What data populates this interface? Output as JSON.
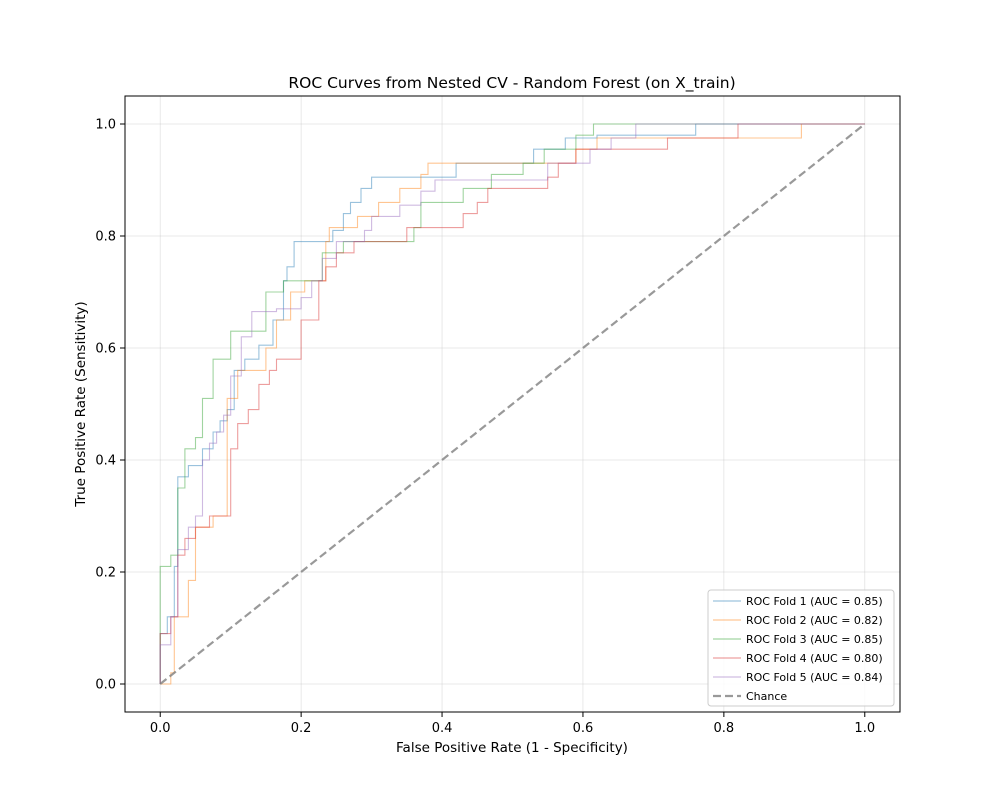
{
  "chart_data": {
    "type": "line",
    "title": "ROC Curves from Nested CV - Random Forest (on X_train)",
    "xlabel": "False Positive Rate (1 - Specificity)",
    "ylabel": "True Positive Rate (Sensitivity)",
    "xlim": [
      -0.05,
      1.05
    ],
    "ylim": [
      -0.05,
      1.05
    ],
    "xticks": [
      0.0,
      0.2,
      0.4,
      0.6,
      0.8,
      1.0
    ],
    "yticks": [
      0.0,
      0.2,
      0.4,
      0.6,
      0.8,
      1.0
    ],
    "xtick_labels": [
      "0.0",
      "0.2",
      "0.4",
      "0.6",
      "0.8",
      "1.0"
    ],
    "ytick_labels": [
      "0.0",
      "0.2",
      "0.4",
      "0.6",
      "0.8",
      "1.0"
    ],
    "grid": true,
    "legend_position": "lower-right",
    "series": [
      {
        "name": "ROC Fold 1 (AUC = 0.85)",
        "color": "#1f77b4",
        "step": true,
        "points": [
          [
            0,
            0
          ],
          [
            0,
            0.09
          ],
          [
            0.01,
            0.09
          ],
          [
            0.01,
            0.12
          ],
          [
            0.02,
            0.12
          ],
          [
            0.02,
            0.21
          ],
          [
            0.025,
            0.21
          ],
          [
            0.025,
            0.37
          ],
          [
            0.04,
            0.37
          ],
          [
            0.04,
            0.39
          ],
          [
            0.06,
            0.39
          ],
          [
            0.06,
            0.42
          ],
          [
            0.075,
            0.42
          ],
          [
            0.075,
            0.45
          ],
          [
            0.085,
            0.45
          ],
          [
            0.085,
            0.47
          ],
          [
            0.095,
            0.47
          ],
          [
            0.095,
            0.49
          ],
          [
            0.105,
            0.49
          ],
          [
            0.105,
            0.56
          ],
          [
            0.12,
            0.56
          ],
          [
            0.12,
            0.58
          ],
          [
            0.14,
            0.58
          ],
          [
            0.14,
            0.605
          ],
          [
            0.16,
            0.605
          ],
          [
            0.16,
            0.65
          ],
          [
            0.175,
            0.65
          ],
          [
            0.175,
            0.72
          ],
          [
            0.18,
            0.72
          ],
          [
            0.18,
            0.745
          ],
          [
            0.19,
            0.745
          ],
          [
            0.19,
            0.79
          ],
          [
            0.245,
            0.79
          ],
          [
            0.245,
            0.81
          ],
          [
            0.26,
            0.81
          ],
          [
            0.26,
            0.84
          ],
          [
            0.27,
            0.84
          ],
          [
            0.27,
            0.86
          ],
          [
            0.285,
            0.86
          ],
          [
            0.285,
            0.885
          ],
          [
            0.3,
            0.885
          ],
          [
            0.3,
            0.905
          ],
          [
            0.42,
            0.905
          ],
          [
            0.42,
            0.93
          ],
          [
            0.53,
            0.93
          ],
          [
            0.53,
            0.955
          ],
          [
            0.575,
            0.955
          ],
          [
            0.575,
            0.975
          ],
          [
            0.62,
            0.975
          ],
          [
            0.62,
            0.98
          ],
          [
            0.76,
            0.98
          ],
          [
            0.76,
            1.0
          ],
          [
            1.0,
            1.0
          ]
        ]
      },
      {
        "name": "ROC Fold 2 (AUC = 0.82)",
        "color": "#ff7f0e",
        "step": true,
        "points": [
          [
            0,
            0
          ],
          [
            0.015,
            0
          ],
          [
            0.015,
            0.02
          ],
          [
            0.02,
            0.02
          ],
          [
            0.02,
            0.12
          ],
          [
            0.04,
            0.12
          ],
          [
            0.04,
            0.185
          ],
          [
            0.05,
            0.185
          ],
          [
            0.05,
            0.28
          ],
          [
            0.075,
            0.28
          ],
          [
            0.075,
            0.3
          ],
          [
            0.095,
            0.3
          ],
          [
            0.095,
            0.51
          ],
          [
            0.11,
            0.51
          ],
          [
            0.11,
            0.56
          ],
          [
            0.15,
            0.56
          ],
          [
            0.15,
            0.6
          ],
          [
            0.165,
            0.6
          ],
          [
            0.165,
            0.65
          ],
          [
            0.185,
            0.65
          ],
          [
            0.185,
            0.7
          ],
          [
            0.205,
            0.7
          ],
          [
            0.205,
            0.72
          ],
          [
            0.235,
            0.72
          ],
          [
            0.235,
            0.79
          ],
          [
            0.24,
            0.79
          ],
          [
            0.24,
            0.815
          ],
          [
            0.28,
            0.815
          ],
          [
            0.28,
            0.835
          ],
          [
            0.31,
            0.835
          ],
          [
            0.31,
            0.86
          ],
          [
            0.34,
            0.86
          ],
          [
            0.34,
            0.885
          ],
          [
            0.37,
            0.885
          ],
          [
            0.37,
            0.91
          ],
          [
            0.38,
            0.91
          ],
          [
            0.38,
            0.93
          ],
          [
            0.59,
            0.93
          ],
          [
            0.59,
            0.955
          ],
          [
            0.62,
            0.955
          ],
          [
            0.62,
            0.975
          ],
          [
            0.91,
            0.975
          ],
          [
            0.91,
            1.0
          ],
          [
            1.0,
            1.0
          ]
        ]
      },
      {
        "name": "ROC Fold 3 (AUC = 0.85)",
        "color": "#2ca02c",
        "step": true,
        "points": [
          [
            0,
            0
          ],
          [
            0,
            0.21
          ],
          [
            0.015,
            0.21
          ],
          [
            0.015,
            0.23
          ],
          [
            0.025,
            0.23
          ],
          [
            0.025,
            0.35
          ],
          [
            0.035,
            0.35
          ],
          [
            0.035,
            0.42
          ],
          [
            0.05,
            0.42
          ],
          [
            0.05,
            0.44
          ],
          [
            0.06,
            0.44
          ],
          [
            0.06,
            0.51
          ],
          [
            0.075,
            0.51
          ],
          [
            0.075,
            0.58
          ],
          [
            0.1,
            0.58
          ],
          [
            0.1,
            0.63
          ],
          [
            0.15,
            0.63
          ],
          [
            0.15,
            0.7
          ],
          [
            0.175,
            0.7
          ],
          [
            0.175,
            0.72
          ],
          [
            0.23,
            0.72
          ],
          [
            0.23,
            0.77
          ],
          [
            0.26,
            0.77
          ],
          [
            0.26,
            0.79
          ],
          [
            0.36,
            0.79
          ],
          [
            0.36,
            0.815
          ],
          [
            0.37,
            0.815
          ],
          [
            0.37,
            0.86
          ],
          [
            0.43,
            0.86
          ],
          [
            0.43,
            0.885
          ],
          [
            0.47,
            0.885
          ],
          [
            0.47,
            0.91
          ],
          [
            0.515,
            0.91
          ],
          [
            0.515,
            0.93
          ],
          [
            0.545,
            0.93
          ],
          [
            0.545,
            0.955
          ],
          [
            0.59,
            0.955
          ],
          [
            0.59,
            0.98
          ],
          [
            0.615,
            0.98
          ],
          [
            0.615,
            1.0
          ],
          [
            1.0,
            1.0
          ]
        ]
      },
      {
        "name": "ROC Fold 4 (AUC = 0.80)",
        "color": "#d62728",
        "step": true,
        "points": [
          [
            0,
            0
          ],
          [
            0,
            0.09
          ],
          [
            0.015,
            0.09
          ],
          [
            0.015,
            0.12
          ],
          [
            0.025,
            0.12
          ],
          [
            0.025,
            0.23
          ],
          [
            0.035,
            0.23
          ],
          [
            0.035,
            0.26
          ],
          [
            0.05,
            0.26
          ],
          [
            0.05,
            0.28
          ],
          [
            0.07,
            0.28
          ],
          [
            0.07,
            0.3
          ],
          [
            0.1,
            0.3
          ],
          [
            0.1,
            0.42
          ],
          [
            0.11,
            0.42
          ],
          [
            0.11,
            0.465
          ],
          [
            0.125,
            0.465
          ],
          [
            0.125,
            0.49
          ],
          [
            0.14,
            0.49
          ],
          [
            0.14,
            0.535
          ],
          [
            0.155,
            0.535
          ],
          [
            0.155,
            0.56
          ],
          [
            0.165,
            0.56
          ],
          [
            0.165,
            0.58
          ],
          [
            0.2,
            0.58
          ],
          [
            0.2,
            0.65
          ],
          [
            0.225,
            0.65
          ],
          [
            0.225,
            0.72
          ],
          [
            0.235,
            0.72
          ],
          [
            0.235,
            0.745
          ],
          [
            0.25,
            0.745
          ],
          [
            0.25,
            0.77
          ],
          [
            0.275,
            0.77
          ],
          [
            0.275,
            0.79
          ],
          [
            0.35,
            0.79
          ],
          [
            0.35,
            0.815
          ],
          [
            0.43,
            0.815
          ],
          [
            0.43,
            0.84
          ],
          [
            0.45,
            0.84
          ],
          [
            0.45,
            0.86
          ],
          [
            0.465,
            0.86
          ],
          [
            0.465,
            0.885
          ],
          [
            0.55,
            0.885
          ],
          [
            0.55,
            0.905
          ],
          [
            0.565,
            0.905
          ],
          [
            0.565,
            0.93
          ],
          [
            0.59,
            0.93
          ],
          [
            0.59,
            0.955
          ],
          [
            0.72,
            0.955
          ],
          [
            0.72,
            0.975
          ],
          [
            0.82,
            0.975
          ],
          [
            0.82,
            1.0
          ],
          [
            1.0,
            1.0
          ]
        ]
      },
      {
        "name": "ROC Fold 5 (AUC = 0.84)",
        "color": "#9467bd",
        "step": true,
        "points": [
          [
            0,
            0
          ],
          [
            0,
            0.07
          ],
          [
            0.015,
            0.07
          ],
          [
            0.015,
            0.12
          ],
          [
            0.025,
            0.12
          ],
          [
            0.025,
            0.24
          ],
          [
            0.04,
            0.24
          ],
          [
            0.04,
            0.28
          ],
          [
            0.05,
            0.28
          ],
          [
            0.05,
            0.3
          ],
          [
            0.06,
            0.3
          ],
          [
            0.06,
            0.4
          ],
          [
            0.07,
            0.4
          ],
          [
            0.07,
            0.43
          ],
          [
            0.08,
            0.43
          ],
          [
            0.08,
            0.45
          ],
          [
            0.09,
            0.45
          ],
          [
            0.09,
            0.48
          ],
          [
            0.1,
            0.48
          ],
          [
            0.1,
            0.55
          ],
          [
            0.115,
            0.55
          ],
          [
            0.115,
            0.62
          ],
          [
            0.13,
            0.62
          ],
          [
            0.13,
            0.665
          ],
          [
            0.165,
            0.665
          ],
          [
            0.165,
            0.67
          ],
          [
            0.2,
            0.67
          ],
          [
            0.2,
            0.69
          ],
          [
            0.215,
            0.69
          ],
          [
            0.215,
            0.72
          ],
          [
            0.23,
            0.72
          ],
          [
            0.23,
            0.76
          ],
          [
            0.25,
            0.76
          ],
          [
            0.25,
            0.79
          ],
          [
            0.29,
            0.79
          ],
          [
            0.29,
            0.81
          ],
          [
            0.3,
            0.81
          ],
          [
            0.3,
            0.835
          ],
          [
            0.34,
            0.835
          ],
          [
            0.34,
            0.855
          ],
          [
            0.37,
            0.855
          ],
          [
            0.37,
            0.88
          ],
          [
            0.39,
            0.88
          ],
          [
            0.39,
            0.9
          ],
          [
            0.55,
            0.9
          ],
          [
            0.55,
            0.93
          ],
          [
            0.61,
            0.93
          ],
          [
            0.61,
            0.955
          ],
          [
            0.64,
            0.955
          ],
          [
            0.64,
            0.975
          ],
          [
            0.675,
            0.975
          ],
          [
            0.675,
            1.0
          ],
          [
            1.0,
            1.0
          ]
        ]
      },
      {
        "name": "Chance",
        "color": "#808080",
        "dashed": true,
        "points": [
          [
            0,
            0
          ],
          [
            1,
            1
          ]
        ]
      }
    ]
  }
}
